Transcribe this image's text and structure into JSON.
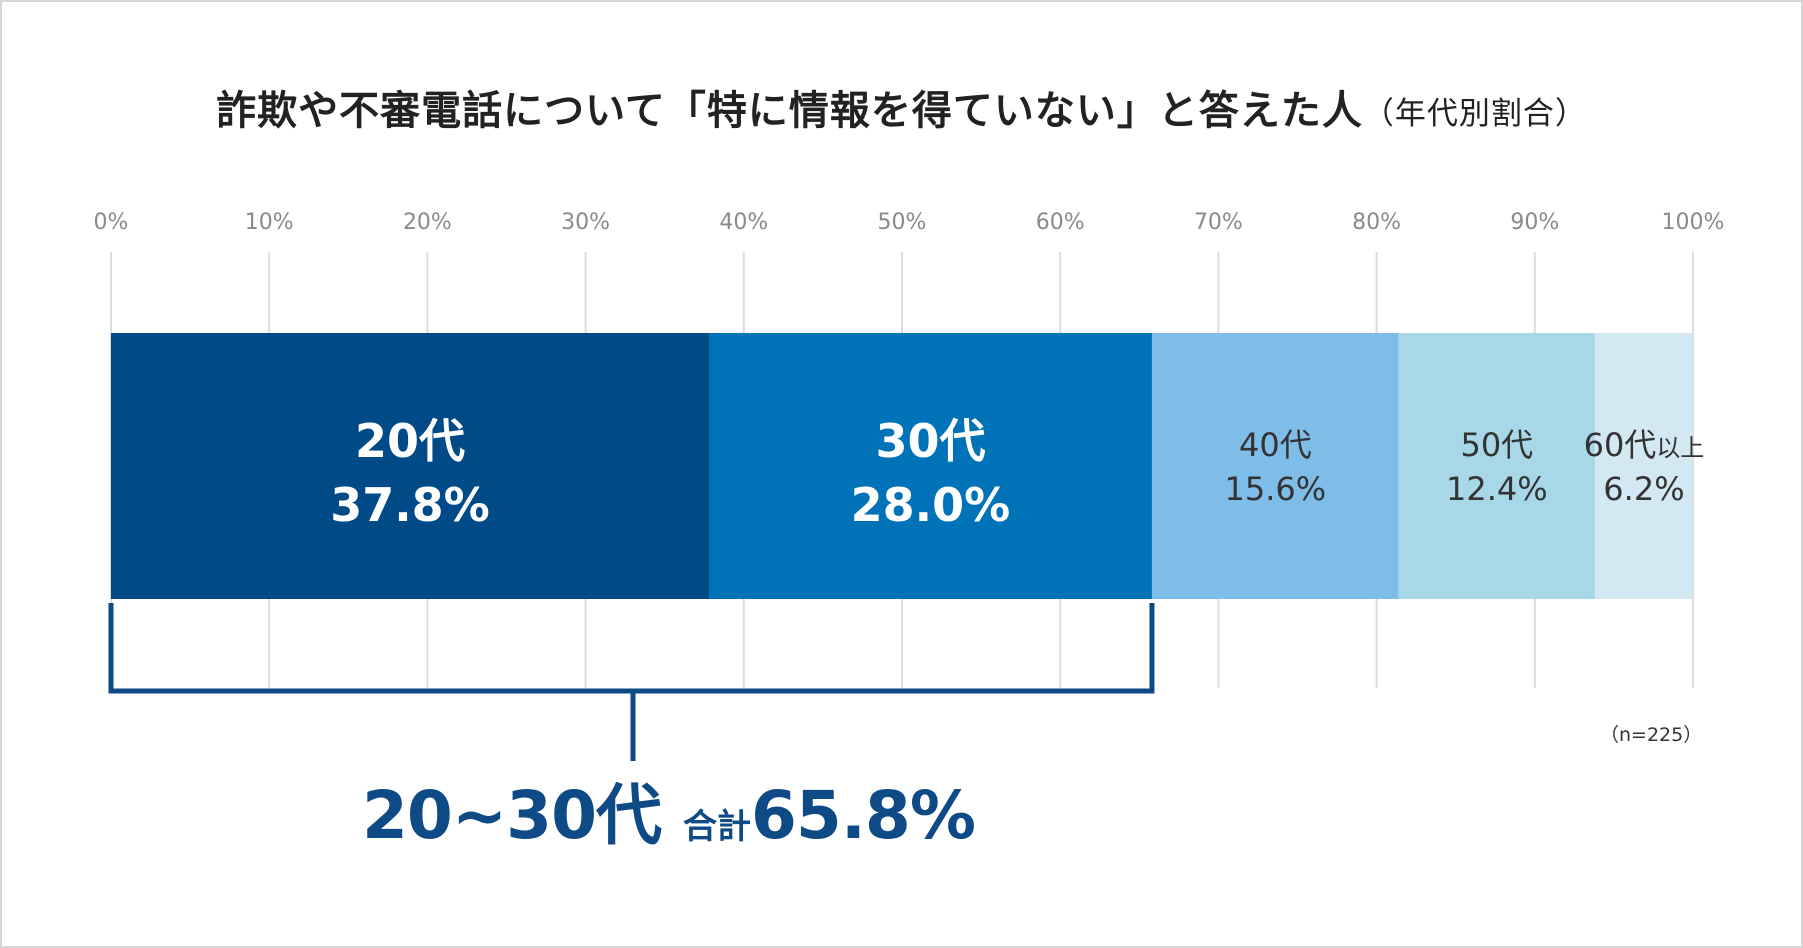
{
  "title": {
    "main": "詐欺や不審電話について「特に情報を得ていない」と答えた人",
    "sub": "（年代別割合）"
  },
  "note": "（n=225）",
  "combined": {
    "range_label": "20~30代",
    "total_word": "合計",
    "value_text": "65.8%"
  },
  "colors": {
    "20代": "#004a87",
    "30代": "#0072b7",
    "40代": "#7fbde9",
    "50代": "#a8d8e8",
    "60代以上": "#d2e8f3",
    "bracket": "#0d4a86"
  },
  "chart_data": {
    "type": "bar",
    "orientation": "horizontal",
    "stacked": true,
    "title": "詐欺や不審電話について「特に情報を得ていない」と答えた人（年代別割合）",
    "xlim": [
      0,
      100
    ],
    "ticks": [
      "0%",
      "10%",
      "20%",
      "30%",
      "40%",
      "50%",
      "60%",
      "70%",
      "80%",
      "90%",
      "100%"
    ],
    "grid": true,
    "series": [
      {
        "name": "20代",
        "value": 37.8,
        "label": "37.8%"
      },
      {
        "name": "30代",
        "value": 28.0,
        "label": "28.0%"
      },
      {
        "name": "40代",
        "value": 15.6,
        "label": "15.6%"
      },
      {
        "name": "50代",
        "value": 12.4,
        "label": "12.4%"
      },
      {
        "name": "60代以上",
        "value": 6.2,
        "label": "6.2%"
      }
    ]
  }
}
